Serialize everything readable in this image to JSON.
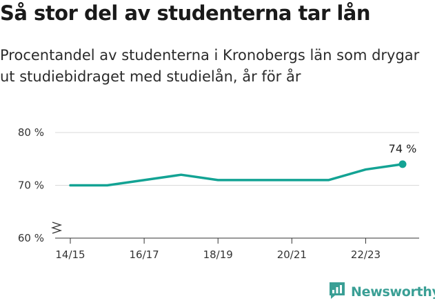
{
  "header": {
    "title": "Så stor del av studenterna tar lån",
    "subtitle": "Procentandel av studenterna i Kronobergs län som drygar ut studiebidraget med studielån, år för år"
  },
  "chart_data": {
    "type": "line",
    "title": "Så stor del av studenterna tar lån",
    "subtitle": "Procentandel av studenterna i Kronobergs län som drygar ut studiebidraget med studielån, år för år",
    "x": [
      "14/15",
      "15/16",
      "16/17",
      "17/18",
      "18/19",
      "19/20",
      "20/21",
      "21/22",
      "22/23",
      "23/24"
    ],
    "xticks": [
      "14/15",
      "16/17",
      "18/19",
      "20/21",
      "22/23"
    ],
    "series": [
      {
        "values": [
          70,
          70,
          71,
          72,
          71,
          71,
          71,
          71,
          73,
          74
        ],
        "color": "#13a394"
      }
    ],
    "ylim": [
      60,
      80
    ],
    "yticks": [
      60,
      70,
      80
    ],
    "ytick_labels": [
      "60 %",
      "70 %",
      "80 %"
    ],
    "axis_break": true,
    "end_label": "74 %",
    "grid": "horizontal",
    "xlabel": "",
    "ylabel": ""
  },
  "brand": {
    "name": "Newsworthy",
    "icon": "bar-chart-logo-icon",
    "color": "#3a9f95"
  }
}
